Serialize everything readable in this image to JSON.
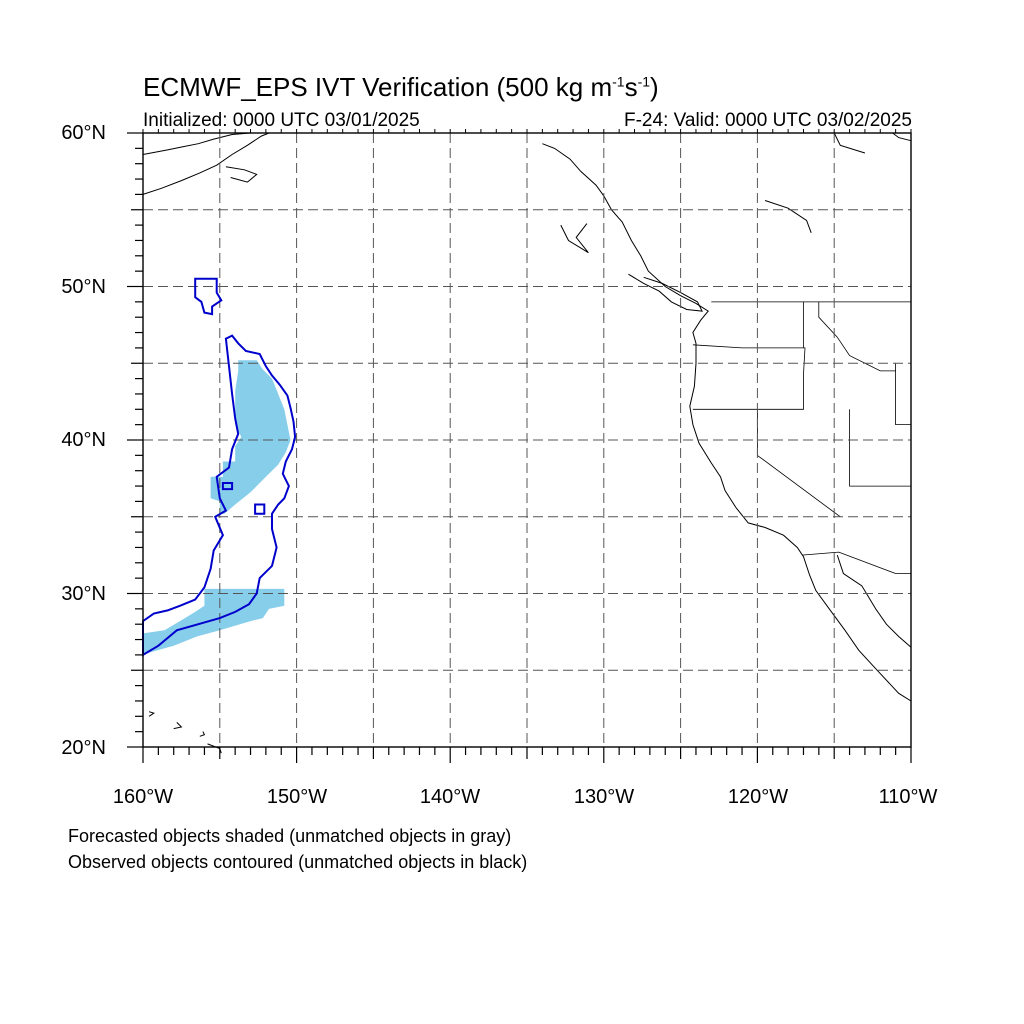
{
  "title": {
    "prefix": "ECMWF_EPS IVT Verification (500 kg m",
    "exp1": "-1",
    "middle": "s",
    "exp2": "-1",
    "suffix": ")"
  },
  "subtitle_left": "Initialized: 0000 UTC 03/01/2025",
  "subtitle_right": "F-24: Valid: 0000 UTC 03/02/2025",
  "map": {
    "lon_range": [
      -160,
      -110
    ],
    "lat_range": [
      20,
      60
    ],
    "lat_labels": [
      "60°N",
      "50°N",
      "40°N",
      "30°N",
      "20°N"
    ],
    "lon_labels": [
      "160°W",
      "150°W",
      "140°W",
      "130°W",
      "120°W",
      "110°W"
    ],
    "colors": {
      "forecast_fill": "#87ceeb",
      "observed_contour": "#0000cc",
      "coastline": "#000000",
      "grid": "#555555"
    },
    "forecast_objects": [
      {
        "name": "forecast-object-north",
        "points": [
          [
            -153.8,
            45.2
          ],
          [
            -152.6,
            45.2
          ],
          [
            -152.2,
            44.6
          ],
          [
            -151.6,
            44.0
          ],
          [
            -151.2,
            43.0
          ],
          [
            -150.8,
            42.0
          ],
          [
            -150.6,
            41.0
          ],
          [
            -150.4,
            40.0
          ],
          [
            -150.7,
            39.2
          ],
          [
            -151.2,
            38.4
          ],
          [
            -152.0,
            37.6
          ],
          [
            -153.0,
            36.6
          ],
          [
            -154.0,
            35.8
          ],
          [
            -154.7,
            35.2
          ],
          [
            -155.0,
            35.2
          ],
          [
            -155.0,
            36.0
          ],
          [
            -155.6,
            36.2
          ],
          [
            -155.6,
            37.6
          ],
          [
            -154.8,
            37.6
          ],
          [
            -154.8,
            38.6
          ],
          [
            -154.0,
            38.6
          ],
          [
            -154.0,
            39.6
          ],
          [
            -153.6,
            40.2
          ],
          [
            -154.0,
            41.0
          ],
          [
            -154.0,
            43.2
          ],
          [
            -153.8,
            44.5
          ]
        ]
      },
      {
        "name": "forecast-object-south",
        "points": [
          [
            -156.0,
            30.3
          ],
          [
            -150.8,
            30.3
          ],
          [
            -150.8,
            29.2
          ],
          [
            -151.8,
            29.0
          ],
          [
            -152.2,
            28.4
          ],
          [
            -153.0,
            28.2
          ],
          [
            -155.0,
            27.6
          ],
          [
            -156.5,
            27.2
          ],
          [
            -158.0,
            26.6
          ],
          [
            -159.4,
            26.2
          ],
          [
            -160.0,
            26.0
          ],
          [
            -160.0,
            27.4
          ],
          [
            -158.6,
            27.6
          ],
          [
            -157.6,
            28.2
          ],
          [
            -156.6,
            28.8
          ],
          [
            -156.0,
            29.2
          ]
        ]
      }
    ],
    "observed_contours": [
      {
        "name": "observed-contour-small",
        "points": [
          [
            -156.6,
            50.5
          ],
          [
            -155.2,
            50.5
          ],
          [
            -155.2,
            49.6
          ],
          [
            -154.9,
            49.1
          ],
          [
            -155.5,
            48.7
          ],
          [
            -155.5,
            48.2
          ],
          [
            -156.0,
            48.3
          ],
          [
            -156.2,
            49.0
          ],
          [
            -156.6,
            49.3
          ]
        ]
      },
      {
        "name": "observed-contour-large",
        "points": [
          [
            -154.2,
            46.8
          ],
          [
            -153.8,
            46.3
          ],
          [
            -153.3,
            45.8
          ],
          [
            -152.4,
            45.6
          ],
          [
            -152.0,
            44.8
          ],
          [
            -151.6,
            44.2
          ],
          [
            -151.1,
            43.6
          ],
          [
            -150.6,
            42.9
          ],
          [
            -150.4,
            42.1
          ],
          [
            -150.2,
            41.2
          ],
          [
            -150.1,
            40.2
          ],
          [
            -150.3,
            39.4
          ],
          [
            -150.7,
            38.6
          ],
          [
            -150.9,
            37.8
          ],
          [
            -150.5,
            37.0
          ],
          [
            -150.8,
            36.2
          ],
          [
            -151.2,
            35.8
          ],
          [
            -151.6,
            35.2
          ],
          [
            -151.6,
            34.2
          ],
          [
            -151.3,
            33.0
          ],
          [
            -151.6,
            31.8
          ],
          [
            -152.4,
            31.0
          ],
          [
            -152.6,
            30.0
          ],
          [
            -153.1,
            29.3
          ],
          [
            -154.0,
            28.8
          ],
          [
            -155.0,
            28.4
          ],
          [
            -156.4,
            28.0
          ],
          [
            -157.8,
            27.6
          ],
          [
            -159.0,
            26.6
          ],
          [
            -160.0,
            26.0
          ],
          [
            -160.0,
            28.2
          ],
          [
            -159.3,
            28.7
          ],
          [
            -158.4,
            28.9
          ],
          [
            -157.6,
            29.2
          ],
          [
            -156.6,
            29.6
          ],
          [
            -156.0,
            30.4
          ],
          [
            -155.6,
            31.6
          ],
          [
            -155.4,
            32.8
          ],
          [
            -154.8,
            33.8
          ],
          [
            -155.3,
            35.0
          ],
          [
            -154.6,
            35.4
          ],
          [
            -155.0,
            36.2
          ],
          [
            -155.2,
            37.6
          ],
          [
            -154.4,
            38.2
          ],
          [
            -154.2,
            39.4
          ],
          [
            -153.8,
            40.4
          ],
          [
            -154.0,
            41.4
          ],
          [
            -154.2,
            43.0
          ],
          [
            -154.4,
            44.8
          ],
          [
            -154.6,
            46.6
          ]
        ]
      },
      {
        "name": "observed-contour-dot-a",
        "points": [
          [
            -154.8,
            37.2
          ],
          [
            -154.2,
            37.2
          ],
          [
            -154.2,
            36.8
          ],
          [
            -154.8,
            36.8
          ]
        ]
      },
      {
        "name": "observed-contour-dot-b",
        "points": [
          [
            -152.7,
            35.8
          ],
          [
            -152.1,
            35.8
          ],
          [
            -152.1,
            35.2
          ],
          [
            -152.7,
            35.2
          ]
        ]
      }
    ],
    "coastlines": [
      [
        [
          -134.0,
          59.3
        ],
        [
          -133.2,
          59.0
        ],
        [
          -132.2,
          58.3
        ],
        [
          -131.5,
          57.5
        ],
        [
          -130.5,
          56.6
        ],
        [
          -130.0,
          55.9
        ],
        [
          -129.5,
          55.0
        ],
        [
          -128.8,
          54.2
        ],
        [
          -128.2,
          53.0
        ],
        [
          -127.6,
          52.0
        ],
        [
          -127.1,
          51.0
        ],
        [
          -126.0,
          50.0
        ],
        [
          -125.0,
          49.4
        ],
        [
          -124.0,
          48.9
        ],
        [
          -123.2,
          48.4
        ],
        [
          -123.7,
          47.8
        ],
        [
          -124.2,
          47.0
        ],
        [
          -124.0,
          46.3
        ],
        [
          -124.0,
          45.0
        ],
        [
          -124.1,
          43.5
        ],
        [
          -124.4,
          42.2
        ],
        [
          -124.2,
          41.0
        ],
        [
          -123.8,
          39.8
        ],
        [
          -123.0,
          38.5
        ],
        [
          -122.4,
          37.6
        ],
        [
          -122.1,
          36.7
        ],
        [
          -121.4,
          35.6
        ],
        [
          -120.6,
          34.6
        ],
        [
          -119.5,
          34.3
        ],
        [
          -118.3,
          33.8
        ],
        [
          -117.4,
          33.0
        ],
        [
          -117.0,
          32.4
        ],
        [
          -116.6,
          31.2
        ],
        [
          -116.2,
          30.2
        ],
        [
          -115.4,
          29.1
        ],
        [
          -114.3,
          27.6
        ],
        [
          -113.4,
          26.3
        ],
        [
          -112.2,
          25.0
        ],
        [
          -110.8,
          23.5
        ],
        [
          -110.0,
          23.0
        ]
      ],
      [
        [
          -114.8,
          32.5
        ],
        [
          -114.4,
          31.3
        ],
        [
          -113.2,
          30.5
        ],
        [
          -112.3,
          29.0
        ],
        [
          -111.6,
          28.0
        ],
        [
          -110.8,
          27.2
        ],
        [
          -110.0,
          26.5
        ]
      ],
      [
        [
          -128.4,
          50.8
        ],
        [
          -127.4,
          50.2
        ],
        [
          -126.4,
          49.7
        ],
        [
          -125.6,
          49.0
        ],
        [
          -124.6,
          48.5
        ],
        [
          -123.6,
          48.4
        ],
        [
          -123.9,
          49.0
        ],
        [
          -125.0,
          49.6
        ],
        [
          -126.2,
          50.2
        ],
        [
          -127.4,
          50.6
        ]
      ],
      [
        [
          -131.1,
          54.1
        ],
        [
          -131.8,
          53.2
        ],
        [
          -131.0,
          52.2
        ],
        [
          -132.3,
          53.0
        ],
        [
          -132.8,
          54.0
        ]
      ],
      [
        [
          -160.0,
          58.6
        ],
        [
          -158.4,
          58.9
        ],
        [
          -157.4,
          59.1
        ],
        [
          -156.4,
          59.3
        ],
        [
          -155.4,
          59.6
        ],
        [
          -154.2,
          59.9
        ],
        [
          -153.0,
          60.0
        ]
      ],
      [
        [
          -160.0,
          56.0
        ],
        [
          -158.8,
          56.4
        ],
        [
          -157.5,
          56.9
        ],
        [
          -156.3,
          57.4
        ],
        [
          -155.2,
          57.9
        ],
        [
          -154.2,
          58.6
        ],
        [
          -153.2,
          59.2
        ],
        [
          -152.3,
          59.8
        ],
        [
          -151.8,
          60.0
        ]
      ],
      [
        [
          -154.6,
          57.8
        ],
        [
          -153.4,
          57.6
        ],
        [
          -152.6,
          57.3
        ],
        [
          -153.2,
          56.8
        ],
        [
          -154.3,
          57.1
        ]
      ],
      [
        [
          -158.0,
          21.2
        ],
        [
          -157.5,
          21.3
        ],
        [
          -157.8,
          21.6
        ]
      ],
      [
        [
          -156.3,
          20.7
        ],
        [
          -156.0,
          20.8
        ],
        [
          -156.1,
          21.0
        ]
      ],
      [
        [
          -159.6,
          22.0
        ],
        [
          -159.3,
          22.2
        ],
        [
          -159.6,
          22.3
        ]
      ],
      [
        [
          -155.8,
          20.2
        ],
        [
          -155.0,
          19.9
        ],
        [
          -154.9,
          19.6
        ]
      ],
      [
        [
          -115.0,
          60.0
        ],
        [
          -114.6,
          59.2
        ],
        [
          -113.0,
          58.7
        ]
      ],
      [
        [
          -119.5,
          55.6
        ],
        [
          -118.0,
          55.1
        ],
        [
          -116.8,
          54.3
        ],
        [
          -116.5,
          53.5
        ]
      ],
      [
        [
          -110.0,
          59.5
        ],
        [
          -110.8,
          59.7
        ],
        [
          -111.2,
          60.0
        ]
      ]
    ],
    "borders": [
      [
        [
          -123.0,
          49.0
        ],
        [
          -110.0,
          49.0
        ]
      ],
      [
        [
          -124.2,
          46.2
        ],
        [
          -121.0,
          46.0
        ],
        [
          -118.0,
          46.0
        ],
        [
          -116.9,
          46.0
        ],
        [
          -117.0,
          44.3
        ],
        [
          -117.0,
          42.0
        ],
        [
          -120.0,
          42.0
        ],
        [
          -124.2,
          42.0
        ]
      ],
      [
        [
          -117.0,
          49.0
        ],
        [
          -117.0,
          46.0
        ]
      ],
      [
        [
          -116.0,
          49.0
        ],
        [
          -116.0,
          48.0
        ],
        [
          -114.8,
          46.7
        ],
        [
          -114.0,
          45.5
        ],
        [
          -112.0,
          44.5
        ],
        [
          -111.0,
          44.5
        ]
      ],
      [
        [
          -120.0,
          42.0
        ],
        [
          -120.0,
          39.0
        ],
        [
          -114.6,
          35.0
        ]
      ],
      [
        [
          -114.0,
          42.0
        ],
        [
          -114.0,
          37.0
        ],
        [
          -110.0,
          37.0
        ]
      ],
      [
        [
          -111.0,
          45.0
        ],
        [
          -111.0,
          41.0
        ],
        [
          -110.0,
          41.0
        ]
      ],
      [
        [
          -117.1,
          32.5
        ],
        [
          -114.7,
          32.7
        ],
        [
          -111.0,
          31.3
        ],
        [
          -110.0,
          31.3
        ]
      ]
    ]
  },
  "notes": [
    "Forecasted objects shaded (unmatched objects in gray)",
    "Observed objects contoured (unmatched objects in black)"
  ]
}
